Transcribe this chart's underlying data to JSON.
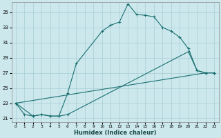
{
  "xlabel": "Humidex (Indice chaleur)",
  "bg_color": "#cce8ed",
  "grid_color": "#a8cdd5",
  "line_color": "#1a7070",
  "xlim": [
    -0.5,
    23.5
  ],
  "ylim": [
    20.5,
    36.3
  ],
  "yticks": [
    21,
    23,
    25,
    27,
    29,
    31,
    33,
    35
  ],
  "xticks": [
    0,
    1,
    2,
    3,
    4,
    5,
    6,
    7,
    8,
    9,
    10,
    11,
    12,
    13,
    14,
    15,
    16,
    17,
    18,
    19,
    20,
    21,
    22,
    23
  ],
  "line1_x": [
    0,
    1,
    2,
    3,
    4,
    5,
    6,
    7,
    10,
    11,
    12,
    13,
    14,
    15,
    16,
    17,
    18,
    19,
    20,
    21,
    22,
    23
  ],
  "line1_y": [
    23.0,
    21.5,
    21.3,
    21.5,
    21.3,
    21.3,
    24.3,
    28.2,
    32.5,
    33.3,
    33.7,
    36.1,
    34.7,
    34.6,
    34.4,
    33.0,
    32.5,
    31.7,
    30.2,
    27.3,
    27.0,
    27.0
  ],
  "line2_x": [
    0,
    2,
    3,
    4,
    5,
    6,
    20,
    21,
    22,
    23
  ],
  "line2_y": [
    23.0,
    21.3,
    21.5,
    21.3,
    21.3,
    21.5,
    29.8,
    27.3,
    27.0,
    27.0
  ],
  "line3_x": [
    0,
    22,
    23
  ],
  "line3_y": [
    23.0,
    27.0,
    27.0
  ]
}
